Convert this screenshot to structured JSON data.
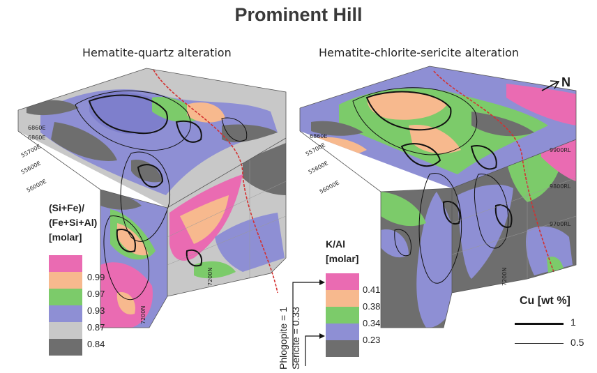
{
  "title": "Prominent Hill",
  "panels": [
    {
      "subtitle": "Hematite-quartz alteration",
      "legend": {
        "title_lines": [
          "(Si+Fe)/",
          "(Fe+Si+Al)",
          "[molar]"
        ],
        "items": [
          {
            "color": "#ea6bb2",
            "label": ""
          },
          {
            "color": "#f7b98e",
            "label": "0.99"
          },
          {
            "color": "#7ccb6a",
            "label": "0.97"
          },
          {
            "color": "#8e8fd4",
            "label": "0.93"
          },
          {
            "color": "#c8c8c8",
            "label": "0.87"
          },
          {
            "color": "#6e6e6e",
            "label": "0.84"
          }
        ]
      },
      "grid_labels": [
        "6860E",
        "6860E",
        "55700E",
        "55600E",
        "56000E",
        "7200N",
        "7200N"
      ]
    },
    {
      "subtitle": "Hematite-chlorite-sericite alteration",
      "legend": {
        "title_lines": [
          "K/Al",
          "[molar]"
        ],
        "items": [
          {
            "color": "#ea6bb2",
            "label": "0.41"
          },
          {
            "color": "#f7b98e",
            "label": "0.38"
          },
          {
            "color": "#7ccb6a",
            "label": "0.34"
          },
          {
            "color": "#8e8fd4",
            "label": "0.23"
          },
          {
            "color": "#6e6e6e",
            "label": ""
          }
        ]
      },
      "grid_labels": [
        "6860E",
        "55700E",
        "55600E",
        "56000E",
        "9900RL",
        "9800RL",
        "9700RL",
        "7200N"
      ],
      "annotations": [
        "Phlogopite = 1",
        "Sericite = 0.33"
      ]
    }
  ],
  "north_arrow": "N",
  "cu_legend": {
    "title": "Cu  [wt %]",
    "items": [
      {
        "label": "1"
      },
      {
        "label": "0.5"
      }
    ]
  }
}
